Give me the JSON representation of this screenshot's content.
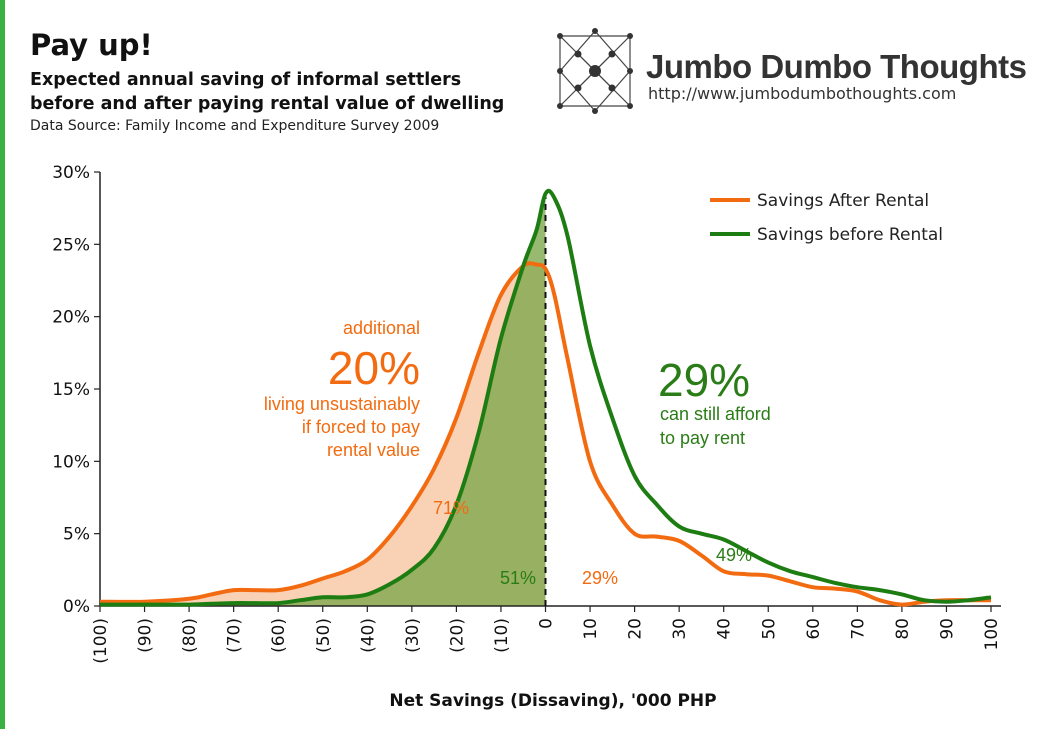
{
  "header": {
    "title": "Pay up!",
    "subtitle_line1": "Expected annual saving of informal settlers",
    "subtitle_line2": "before and after paying rental value of dwelling",
    "source": "Data Source: Family Income and Expenditure Survey 2009",
    "brand_name": "Jumbo Dumbo Thoughts",
    "brand_url": "http://www.jumbodumbothoughts.com",
    "accent_color": "#3cb043"
  },
  "annotations": {
    "left_top": "additional",
    "left_big": "20%",
    "left_line1": "living unsustainably",
    "left_line2": "if forced to pay",
    "left_line3": "rental value",
    "right_big": "29%",
    "right_line1": "can still afford",
    "right_line2": "to pay rent",
    "pct_71": "71%",
    "pct_51": "51%",
    "pct_29": "29%",
    "pct_49": "49%"
  },
  "chart_data": {
    "type": "line",
    "title": "",
    "xlabel": "Net Savings (Dissaving), '000 PHP",
    "ylabel": "",
    "x": [
      -100,
      -90,
      -80,
      -75,
      -70,
      -65,
      -60,
      -55,
      -50,
      -45,
      -40,
      -35,
      -30,
      -25,
      -20,
      -15,
      -10,
      -5,
      -2,
      0,
      2,
      5,
      10,
      15,
      20,
      25,
      30,
      35,
      40,
      45,
      50,
      55,
      60,
      65,
      70,
      75,
      80,
      85,
      90,
      95,
      100
    ],
    "x_tick_labels": [
      "(100)",
      "(90)",
      "(80)",
      "(70)",
      "(60)",
      "(50)",
      "(40)",
      "(30)",
      "(20)",
      "(10)",
      "0",
      "10",
      "20",
      "30",
      "40",
      "50",
      "60",
      "70",
      "80",
      "90",
      "100"
    ],
    "y_tick_labels": [
      "0%",
      "5%",
      "10%",
      "15%",
      "20%",
      "25%",
      "30%"
    ],
    "ylim": [
      0,
      30
    ],
    "xlim": [
      -100,
      100
    ],
    "grid": false,
    "legend_position": "top-right",
    "series": [
      {
        "name": "Savings After Rental",
        "color": "#f36b10",
        "values": [
          0.3,
          0.3,
          0.5,
          0.8,
          1.1,
          1.1,
          1.1,
          1.4,
          1.9,
          2.4,
          3.2,
          4.8,
          6.9,
          9.5,
          13.0,
          17.5,
          21.5,
          23.5,
          23.6,
          23.3,
          21.5,
          17.0,
          10.0,
          7.0,
          5.0,
          4.8,
          4.5,
          3.5,
          2.4,
          2.2,
          2.1,
          1.7,
          1.3,
          1.2,
          1.0,
          0.4,
          0.1,
          0.3,
          0.4,
          0.4,
          0.4
        ]
      },
      {
        "name": "Savings before Rental",
        "color": "#1e7d12",
        "values": [
          0.1,
          0.1,
          0.1,
          0.15,
          0.2,
          0.2,
          0.2,
          0.4,
          0.6,
          0.6,
          0.8,
          1.5,
          2.5,
          4.0,
          7.0,
          12.0,
          18.5,
          23.5,
          26.0,
          28.5,
          28.2,
          25.5,
          18.0,
          13.0,
          9.0,
          7.0,
          5.5,
          5.0,
          4.6,
          3.8,
          3.0,
          2.4,
          2.0,
          1.6,
          1.3,
          1.1,
          0.8,
          0.4,
          0.3,
          0.4,
          0.6
        ]
      }
    ]
  }
}
